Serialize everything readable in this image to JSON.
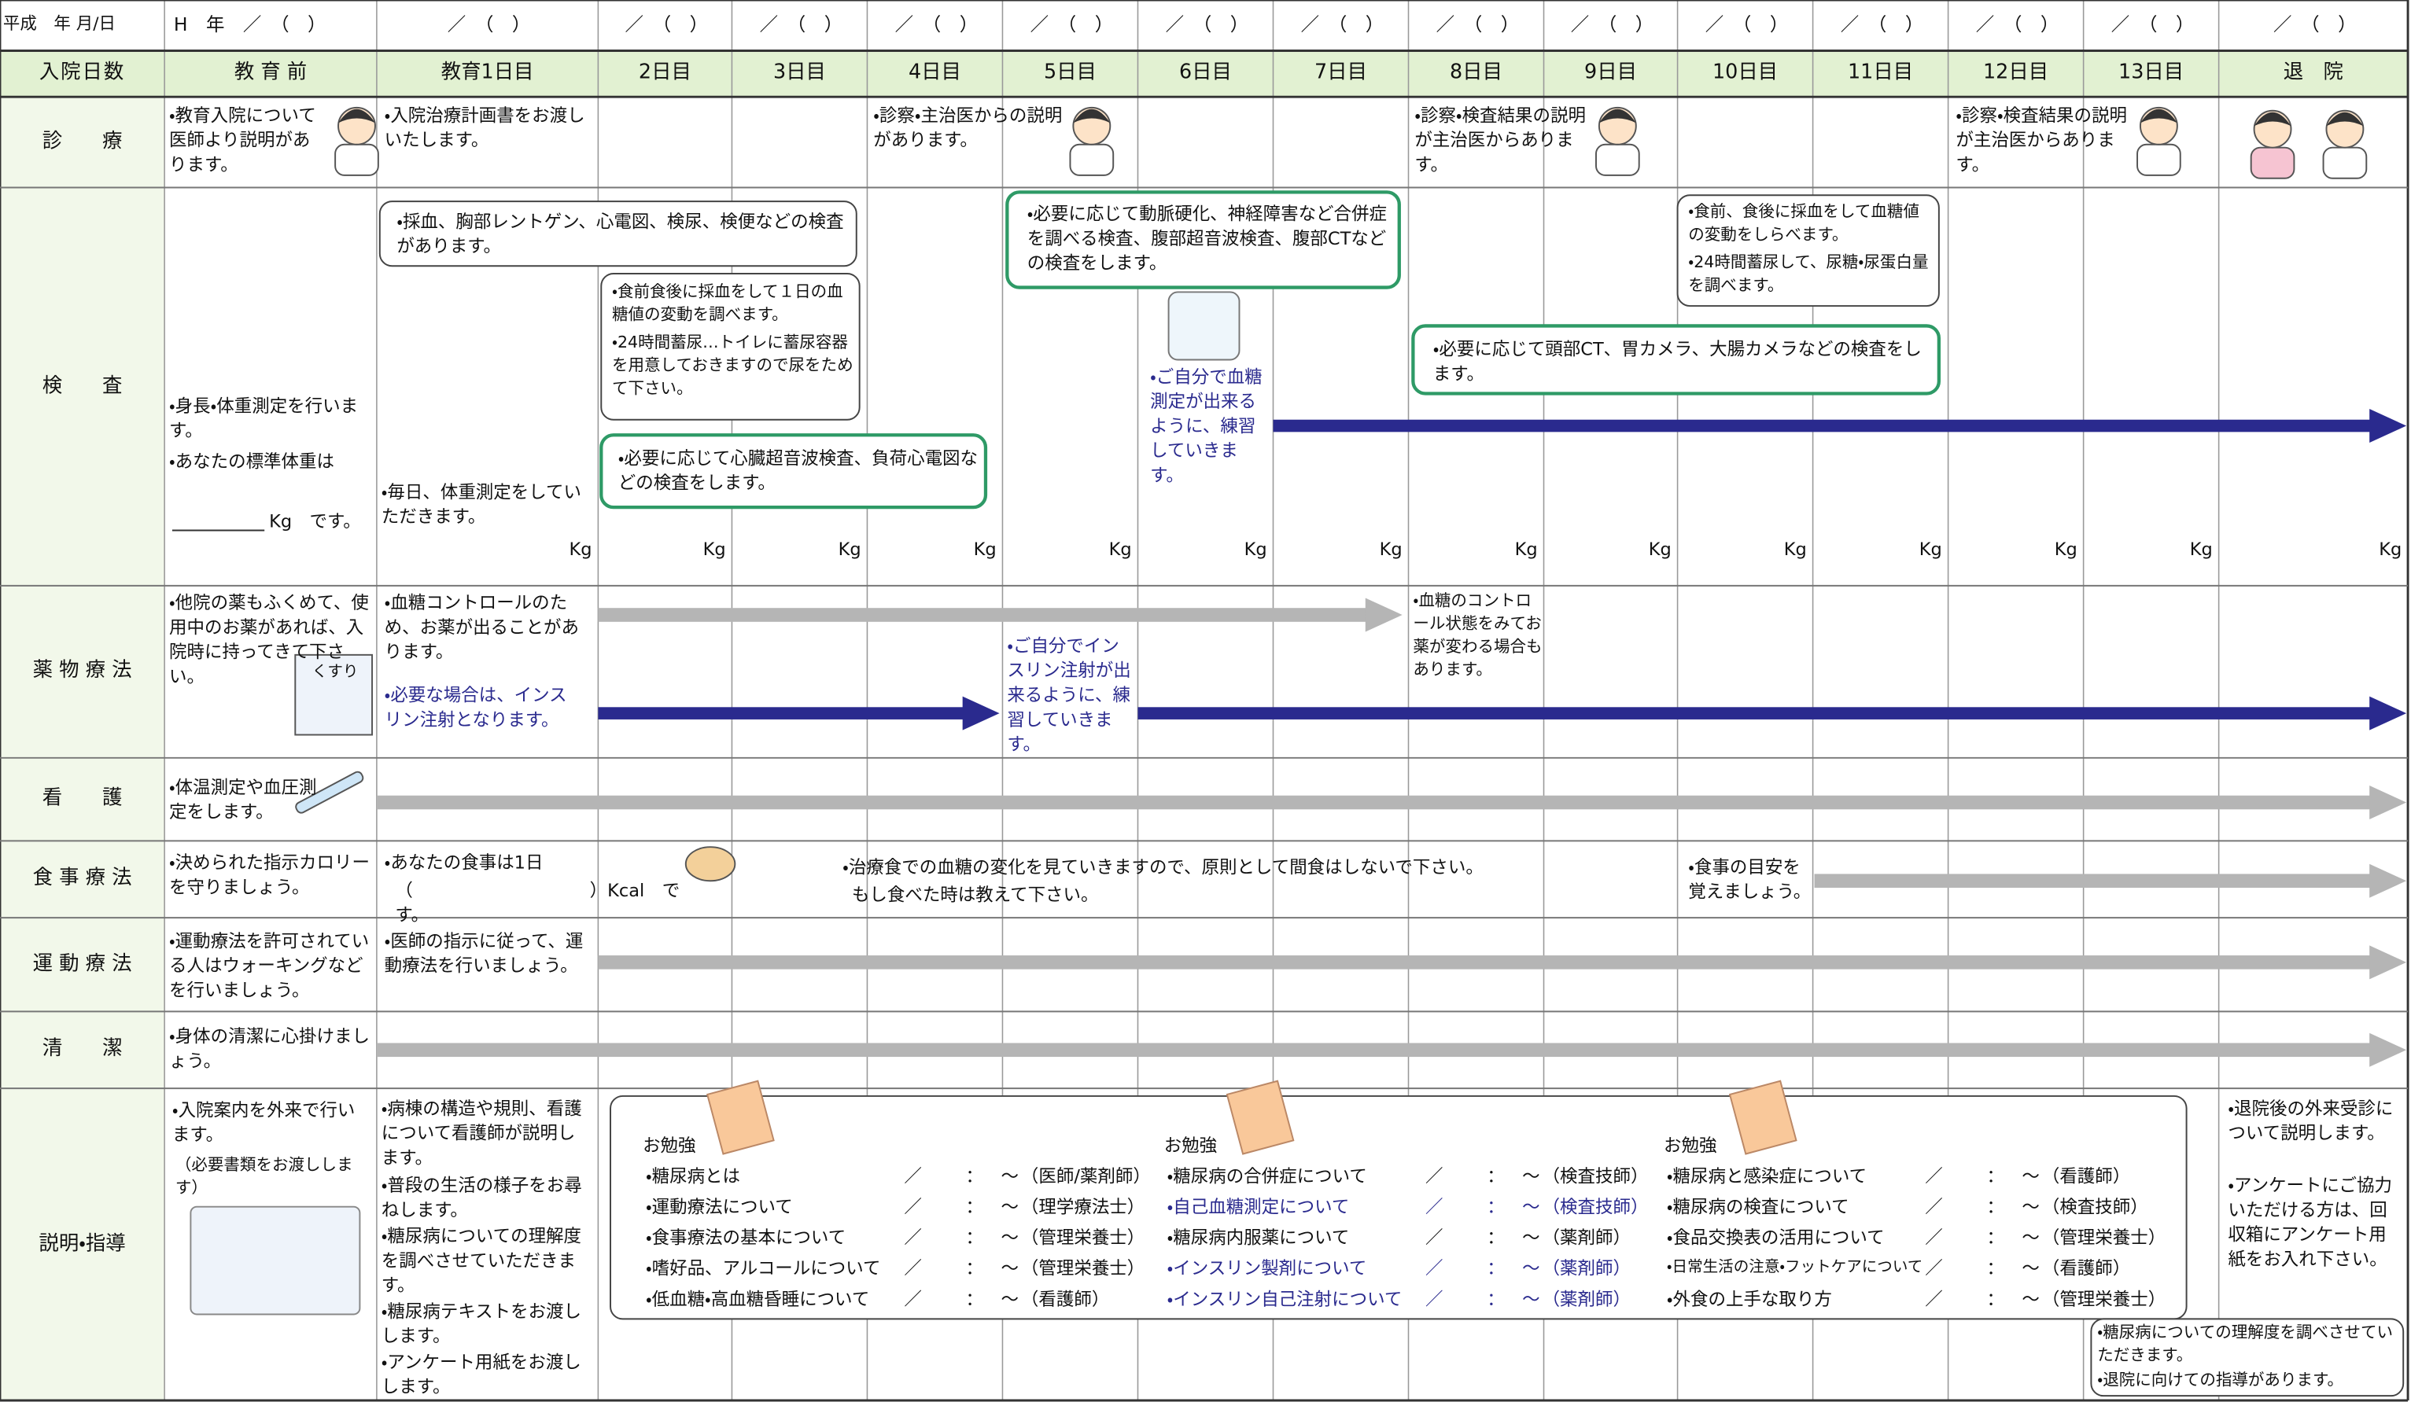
{
  "header": {
    "date_label": "平成　年 月/日",
    "dates": [
      "H　年　／　（　）",
      "／　（　）",
      "／　（　）",
      "／　（　）",
      "／　（　）",
      "／　（　）",
      "／　（　）",
      "／　（　）",
      "／　（　）",
      "／　（　）",
      "／　（　）",
      "／　（　）",
      "／　（　）",
      "／　（　）",
      "／　（　）"
    ],
    "days_label": "入院日数",
    "days": [
      "教 育 前",
      "教育1日目",
      "2日目",
      "3日目",
      "4日目",
      "5日目",
      "6日目",
      "7日目",
      "8日目",
      "9日目",
      "10日目",
      "11日目",
      "12日目",
      "13日目",
      "退　院"
    ]
  },
  "rows": [
    {
      "label": "診　　療",
      "notes": [
        "・教育入院について医師より説明があります。",
        "・入院治療計画書をお渡しいたします。",
        "・診察・主治医からの説明があります。",
        "・診察・検査結果の説明が主治医からあります。",
        "・診察・検査結果の説明が主治医からあります。"
      ]
    },
    {
      "label": "検　　査",
      "unit": "Kg",
      "notes": [
        "・身長・体重測定を行います。",
        "・あなたの標準体重は",
        "Kg　です。",
        "・毎日、体重測定をしていただきます。",
        "・採血、胸部レントゲン、心電図、検尿、検便などの検査があります。",
        "・食前食後に採血をして１日の血糖値の変動を調べます。",
        "・24時間蓄尿…トイレに蓄尿容器を用意しておきますので尿をためて下さい。",
        "・必要に応じて心臓超音波検査、負荷心電図などの検査をします。",
        "・必要に応じて動脈硬化、神経障害など合併症を調べる検査、腹部超音波検査、腹部CTなどの検査をします。",
        "・ご自分で血糖測定が出来るように、練習していきます。",
        "・食前、食後に採血をして血糖値の変動をしらべます。",
        "・24時間蓄尿して、尿糖・尿蛋白量を調べます。",
        "・必要に応じて頭部CT、胃カメラ、大腸カメラなどの検査をします。"
      ]
    },
    {
      "label": "薬 物 療 法",
      "icon_text": "くすり",
      "notes": [
        "・他院の薬もふくめて、使用中のお薬があれば、入院時に持ってきて下さい。",
        "・血糖コントロールのため、お薬が出ることがあります。",
        "・必要な場合は、インスリン注射となります。",
        "・ご自分でインスリン注射が出来るように、練習していきます。",
        "・血糖のコントロール状態をみてお薬が変わる場合もあります。"
      ]
    },
    {
      "label": "看　　護",
      "notes": [
        "・体温測定や血圧測定をします。"
      ]
    },
    {
      "label": "食 事 療 法",
      "notes": [
        "・決められた指示カロリーを守りましょう。",
        "・あなたの食事は1日",
        "（　　　　　　　　　　）Kcal　です。",
        "・治療食での血糖の変化を見ていきますので、原則として間食はしないで下さい。",
        "もし食べた時は教えて下さい。",
        "・食事の目安を覚えましょう。"
      ]
    },
    {
      "label": "運 動 療 法",
      "notes": [
        "・運動療法を許可されている人はウォーキングなどを行いましょう。",
        "・医師の指示に従って、運動療法を行いましょう。"
      ]
    },
    {
      "label": "清　　潔",
      "notes": [
        "・身体の清潔に心掛けましょう。"
      ]
    },
    {
      "label": "説明・指導",
      "notes": [
        "・入院案内を外来で行います。",
        "（必要書類をお渡しします）",
        "・病棟の構造や規則、看護について看護師が説明します。",
        "・普段の生活の様子をお尋ねします。",
        "・糖尿病についての理解度を調べさせていただきます。",
        "・糖尿病テキストをお渡しします。",
        "・アンケート用紙をお渡しします。",
        "・退院後の外来受診について説明します。",
        "・アンケートにご協力いただける方は、回収箱にアンケート用紙をお入れ下さい。",
        "・糖尿病についての理解度を調べさせていただきます。",
        "・退院に向けての指導があります。"
      ]
    }
  ],
  "lessons": {
    "title": "お勉強",
    "marks": [
      "／",
      "：",
      "～"
    ],
    "groups": [
      [
        {
          "topic": "・糖尿病とは",
          "staff": "（医師/薬剤師）"
        },
        {
          "topic": "・運動療法について",
          "staff": "（理学療法士）"
        },
        {
          "topic": "・食事療法の基本について",
          "staff": "（管理栄養士）"
        },
        {
          "topic": "・嗜好品、アルコールについて",
          "staff": "（管理栄養士）"
        },
        {
          "topic": "・低血糖・高血糖昏睡について",
          "staff": "（看護師）"
        }
      ],
      [
        {
          "topic": "・糖尿病の合併症について",
          "staff": "（検査技師）"
        },
        {
          "topic": "・自己血糖測定について",
          "staff": "（検査技師）"
        },
        {
          "topic": "・糖尿病内服薬について",
          "staff": "（薬剤師）"
        },
        {
          "topic": "・インスリン製剤について",
          "staff": "（薬剤師）"
        },
        {
          "topic": "・インスリン自己注射について",
          "staff": "（薬剤師）"
        }
      ],
      [
        {
          "topic": "・糖尿病と感染症について",
          "staff": "（看護師）"
        },
        {
          "topic": "・糖尿病の検査について",
          "staff": "（検査技師）"
        },
        {
          "topic": "・食品交換表の活用について",
          "staff": "（管理栄養士）"
        },
        {
          "topic": "・日常生活の注意・フットケアについて",
          "staff": "（看護師）"
        },
        {
          "topic": "・外食の上手な取り方",
          "staff": "（管理栄養士）"
        }
      ]
    ]
  }
}
